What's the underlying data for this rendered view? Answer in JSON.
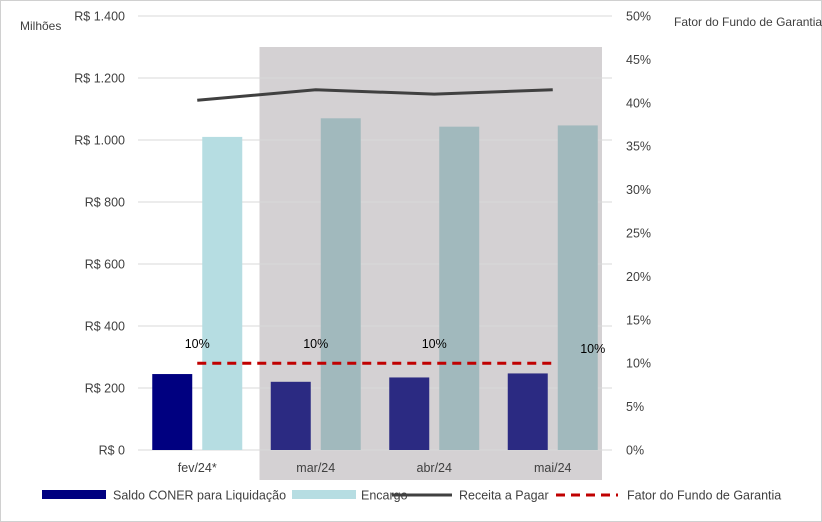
{
  "chart_data": {
    "type": "bar",
    "categories": [
      "fev/24*",
      "mar/24",
      "abr/24",
      "mai/24"
    ],
    "y_left": {
      "label": "Milhões",
      "min": 0,
      "max": 1400,
      "step": 200,
      "tick_prefix": "R$ "
    },
    "y_right": {
      "label": "Fator do Fundo de Garantia",
      "min": 0,
      "max": 50,
      "step": 5,
      "tick_suffix": "%"
    },
    "series": [
      {
        "name": "Saldo CONER para Liquidação",
        "kind": "bar",
        "axis": "left",
        "values": [
          245,
          220,
          234,
          247
        ]
      },
      {
        "name": "Encargo",
        "kind": "bar",
        "axis": "left",
        "values": [
          1010,
          1070,
          1043,
          1047
        ]
      },
      {
        "name": "Receita a Pagar",
        "kind": "line",
        "axis": "right",
        "values": [
          40.3,
          41.5,
          41.0,
          41.5
        ]
      },
      {
        "name": "Fator do Fundo de Garantia",
        "kind": "dashed-line",
        "axis": "right",
        "values": [
          10,
          10,
          10,
          10
        ],
        "data_labels": [
          "10%",
          "10%",
          "10%",
          "10%"
        ]
      }
    ],
    "highlighted_categories": [
      "mar/24",
      "abr/24",
      "mai/24"
    ],
    "grid": "horizontal",
    "legend_position": "bottom",
    "colors": {
      "saldo_actual": "#000080",
      "saldo_highlight": "#2b2a82",
      "encargo_actual": "#b6dde2",
      "encargo_highlight": "#a1b9bd",
      "receita": "#404040",
      "fator": "#c00000",
      "highlight_band": "#d4d1d3",
      "grid": "#d9d9d9"
    }
  }
}
